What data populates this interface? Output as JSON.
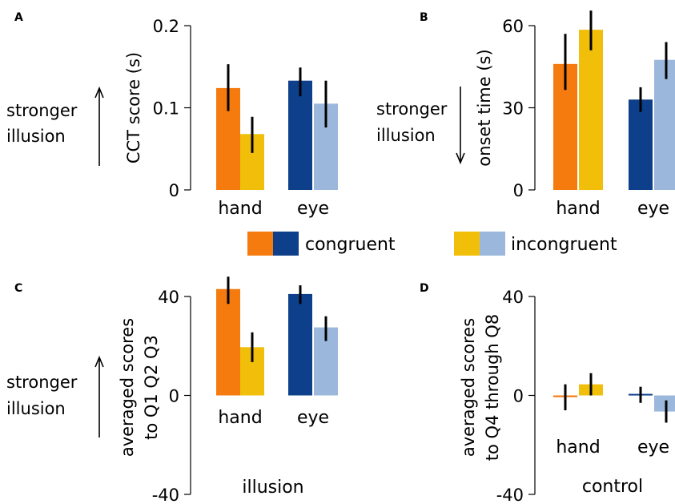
{
  "colors": {
    "hand_congruent": "#f67b0e",
    "hand_incongruent": "#f1bf09",
    "eye_congruent": "#0e3f8a",
    "eye_incongruent": "#9bb8dc",
    "errorbar": "#000000"
  },
  "legend": {
    "congruent": "congruent",
    "incongruent": "incongruent"
  },
  "chart_data": [
    {
      "panel": "A",
      "type": "bar",
      "categories": [
        "hand",
        "eye"
      ],
      "series": [
        {
          "name": "congruent",
          "values": [
            0.124,
            0.133
          ],
          "errors": [
            [
              0.096,
              0.153
            ],
            [
              0.114,
              0.149
            ]
          ]
        },
        {
          "name": "incongruent",
          "values": [
            0.068,
            0.105
          ],
          "errors": [
            [
              0.045,
              0.089
            ],
            [
              0.076,
              0.133
            ]
          ]
        }
      ],
      "ylabel": "CCT score (s)",
      "ylim": [
        0,
        0.2
      ],
      "yticks": [
        "0",
        "0.1",
        "0.2"
      ],
      "side_note": [
        "stronger",
        "illusion"
      ],
      "arrow": "up"
    },
    {
      "panel": "B",
      "type": "bar",
      "categories": [
        "hand",
        "eye"
      ],
      "series": [
        {
          "name": "congruent",
          "values": [
            46,
            33
          ],
          "errors": [
            [
              36.5,
              57
            ],
            [
              28.5,
              37.5
            ]
          ]
        },
        {
          "name": "incongruent",
          "values": [
            58.5,
            47.5
          ],
          "errors": [
            [
              51,
              65.5
            ],
            [
              40.5,
              54
            ]
          ]
        }
      ],
      "ylabel": "onset time (s)",
      "ylim": [
        0,
        60
      ],
      "yticks": [
        "0",
        "30",
        "60"
      ],
      "side_note": [
        "stronger",
        "illusion"
      ],
      "arrow": "down"
    },
    {
      "panel": "C",
      "type": "bar",
      "categories": [
        "hand",
        "eye"
      ],
      "series": [
        {
          "name": "congruent",
          "values": [
            43,
            41
          ],
          "errors": [
            [
              37,
              48
            ],
            [
              37,
              44.5
            ]
          ]
        },
        {
          "name": "incongruent",
          "values": [
            19.5,
            27.5
          ],
          "errors": [
            [
              13.5,
              25.5
            ],
            [
              22,
              32
            ]
          ]
        }
      ],
      "ylabel": [
        "averaged scores",
        "to Q1 Q2 Q3"
      ],
      "ylim": [
        -40,
        40
      ],
      "yticks": [
        "-40",
        "0",
        "40"
      ],
      "group_label": "illusion",
      "side_note": [
        "stronger",
        "illusion"
      ],
      "arrow": "up"
    },
    {
      "panel": "D",
      "type": "bar",
      "categories": [
        "hand",
        "eye"
      ],
      "series": [
        {
          "name": "congruent",
          "values": [
            -0.7,
            0.3
          ],
          "errors": [
            [
              -6,
              4.5
            ],
            [
              -3,
              3.5
            ]
          ]
        },
        {
          "name": "incongruent",
          "values": [
            4.5,
            -6.5
          ],
          "errors": [
            [
              0,
              9
            ],
            [
              -11,
              -2
            ]
          ]
        }
      ],
      "ylabel": [
        "averaged scores",
        "to Q4 through Q8"
      ],
      "ylim": [
        -40,
        40
      ],
      "yticks": [
        "-40",
        "0",
        "40"
      ],
      "group_label": "control"
    }
  ]
}
